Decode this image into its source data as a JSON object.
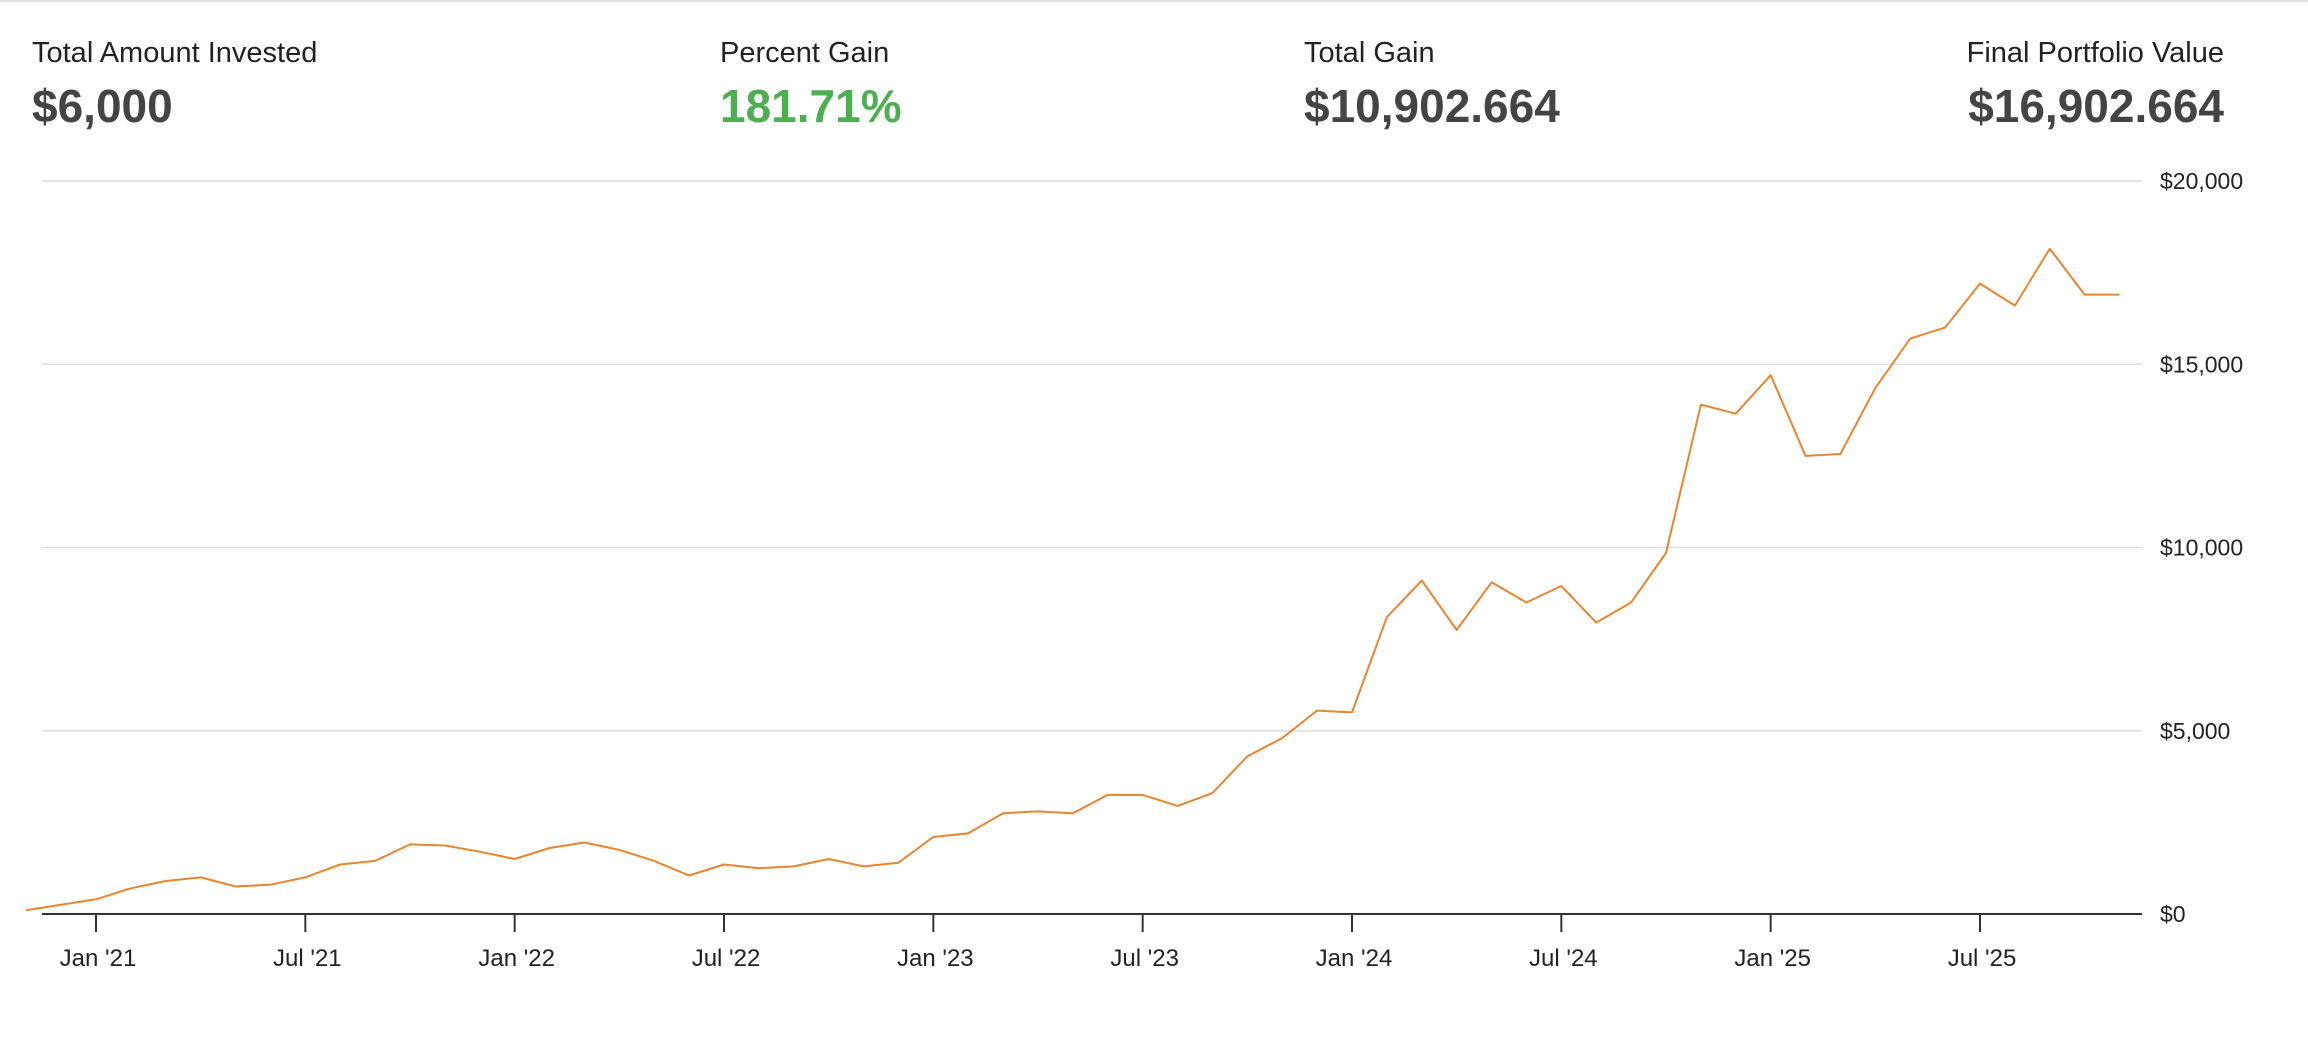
{
  "stats": {
    "total_invested": {
      "label": "Total Amount Invested",
      "value": "$6,000"
    },
    "percent_gain": {
      "label": "Percent Gain",
      "value": "181.71%"
    },
    "total_gain": {
      "label": "Total Gain",
      "value": "$10,902.664"
    },
    "final_value": {
      "label": "Final Portfolio Value",
      "value": "$16,902.664"
    }
  },
  "colors": {
    "line": "#e8852e",
    "percent_gain": "#4caf50",
    "value_text": "#444444",
    "grid": "#dddddd",
    "axis": "#333333"
  },
  "chart_data": {
    "type": "line",
    "title": "",
    "xlabel": "",
    "ylabel": "",
    "ylim": [
      0,
      20000
    ],
    "grid": true,
    "yticks": [
      {
        "value": 0,
        "label": "$0"
      },
      {
        "value": 5000,
        "label": "$5,000"
      },
      {
        "value": 10000,
        "label": "$10,000"
      },
      {
        "value": 15000,
        "label": "$15,000"
      },
      {
        "value": 20000,
        "label": "$20,000"
      }
    ],
    "xticks": [
      {
        "date": "2021-01",
        "label": "Jan '21"
      },
      {
        "date": "2021-07",
        "label": "Jul '21"
      },
      {
        "date": "2022-01",
        "label": "Jan '22"
      },
      {
        "date": "2022-07",
        "label": "Jul '22"
      },
      {
        "date": "2023-01",
        "label": "Jan '23"
      },
      {
        "date": "2023-07",
        "label": "Jul '23"
      },
      {
        "date": "2024-01",
        "label": "Jan '24"
      },
      {
        "date": "2024-07",
        "label": "Jul '24"
      },
      {
        "date": "2025-01",
        "label": "Jan '25"
      },
      {
        "date": "2025-07",
        "label": "Jul '25"
      }
    ],
    "series": [
      {
        "x": [
          "2020-11",
          "2020-12",
          "2021-01",
          "2021-02",
          "2021-03",
          "2021-04",
          "2021-05",
          "2021-06",
          "2021-07",
          "2021-08",
          "2021-09",
          "2021-10",
          "2021-11",
          "2021-12",
          "2022-01",
          "2022-02",
          "2022-03",
          "2022-04",
          "2022-05",
          "2022-06",
          "2022-07",
          "2022-08",
          "2022-09",
          "2022-10",
          "2022-11",
          "2022-12",
          "2023-01",
          "2023-02",
          "2023-03",
          "2023-04",
          "2023-05",
          "2023-06",
          "2023-07",
          "2023-08",
          "2023-09",
          "2023-10",
          "2023-11",
          "2023-12",
          "2024-01",
          "2024-02",
          "2024-03",
          "2024-04",
          "2024-05",
          "2024-06",
          "2024-07",
          "2024-08",
          "2024-09",
          "2024-10",
          "2024-11",
          "2024-12",
          "2025-01",
          "2025-02",
          "2025-03",
          "2025-04",
          "2025-05",
          "2025-06",
          "2025-07",
          "2025-08",
          "2025-09",
          "2025-10",
          "2025-11"
        ],
        "y": [
          100,
          250,
          400,
          700,
          900,
          1000,
          750,
          800,
          1000,
          1350,
          1450,
          1900,
          1870,
          1700,
          1500,
          1800,
          1950,
          1750,
          1450,
          1050,
          1350,
          1250,
          1300,
          1500,
          1300,
          1400,
          2100,
          2200,
          2750,
          2800,
          2750,
          3250,
          3250,
          2950,
          3300,
          4300,
          4800,
          5550,
          5500,
          8100,
          9100,
          7750,
          9050,
          8500,
          8950,
          7950,
          8500,
          9850,
          13900,
          13650,
          14700,
          12500,
          12550,
          14350,
          15700,
          16000,
          17200,
          16600,
          18150,
          16900,
          16900
        ]
      }
    ]
  }
}
